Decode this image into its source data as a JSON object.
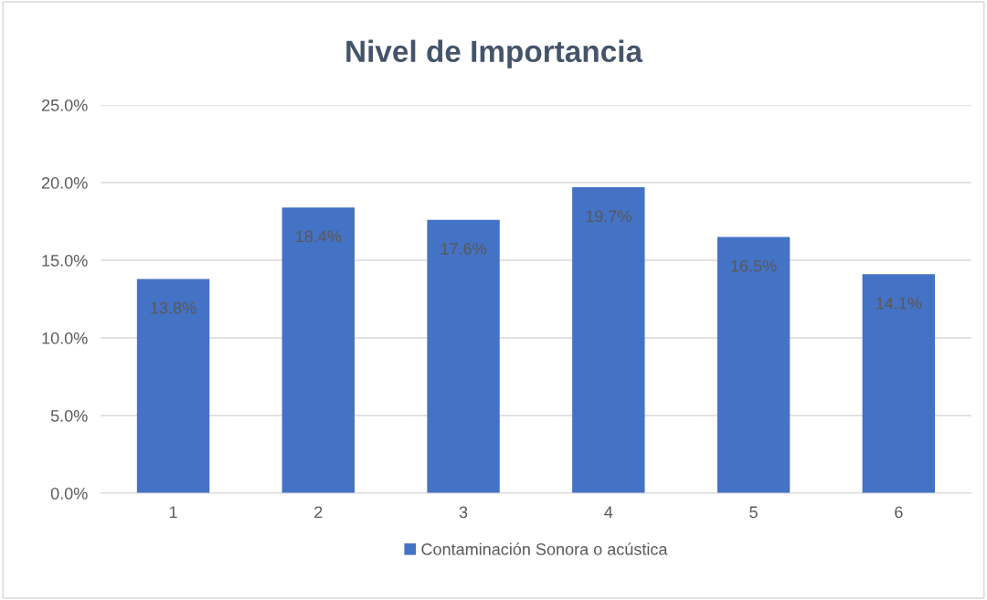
{
  "chart_data": {
    "type": "bar",
    "title": "Nivel de Importancia",
    "categories": [
      "1",
      "2",
      "3",
      "4",
      "5",
      "6"
    ],
    "series": [
      {
        "name": "Contaminación Sonora o acústica",
        "color": "#4472c4",
        "values": [
          13.8,
          18.4,
          17.6,
          19.7,
          16.5,
          14.1
        ],
        "value_labels": [
          "13.8%",
          "18.4%",
          "17.6%",
          "19.7%",
          "16.5%",
          "14.1%"
        ]
      }
    ],
    "ylim": [
      0,
      25
    ],
    "yticks": [
      {
        "value": 0,
        "label": "0.0%"
      },
      {
        "value": 5,
        "label": "5.0%"
      },
      {
        "value": 10,
        "label": "10.0%"
      },
      {
        "value": 15,
        "label": "15.0%"
      },
      {
        "value": 20,
        "label": "20.0%"
      },
      {
        "value": 25,
        "label": "25.0%"
      }
    ],
    "grid": "y",
    "legend": "bottom"
  }
}
